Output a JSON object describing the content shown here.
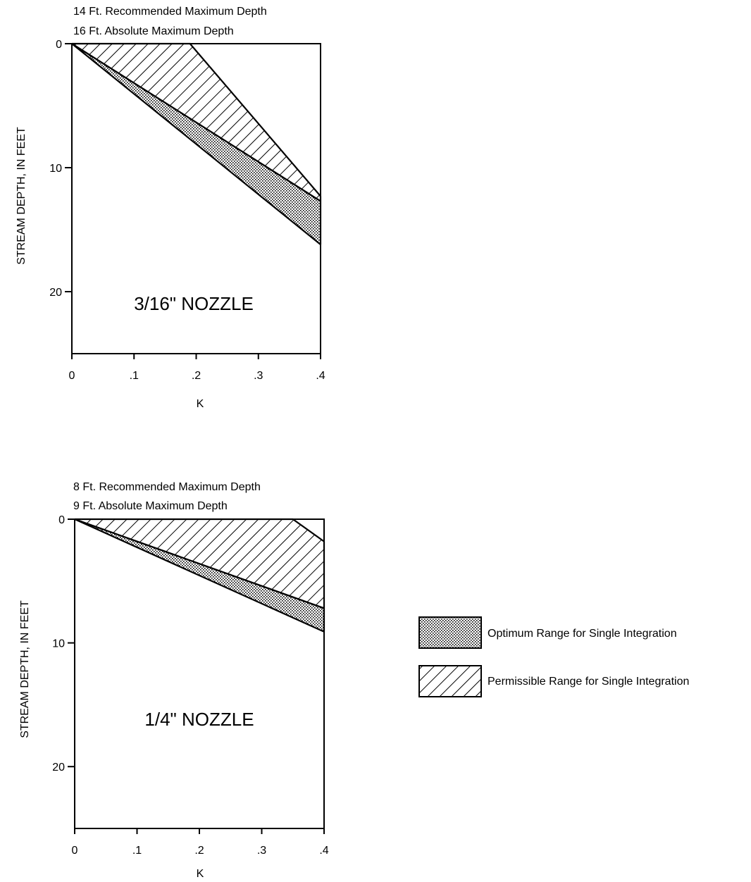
{
  "chart_data": [
    {
      "type": "area",
      "title": "3/16\" NOZZLE",
      "notes": [
        "14 Ft. Recommended Maximum Depth",
        "16 Ft. Absolute Maximum Depth"
      ],
      "xlabel": "K",
      "ylabel": "STREAM DEPTH, IN FEET",
      "xlim": [
        0,
        0.4
      ],
      "ylim": [
        0,
        25
      ],
      "y_inverted": true,
      "grid": false,
      "xticks": [
        0,
        0.1,
        0.2,
        0.3,
        0.4
      ],
      "xtick_labels": [
        "0",
        ".1",
        ".2",
        ".3",
        ".4"
      ],
      "yticks": [
        0,
        10,
        20
      ],
      "ytick_labels": [
        "0",
        "10",
        "20"
      ],
      "series": [
        {
          "name": "Optimum Range for Single Integration",
          "pattern": "dotted",
          "upper": {
            "x": [
              0,
              0.4
            ],
            "y": [
              0,
              12.7
            ]
          },
          "lower": {
            "x": [
              0,
              0.4
            ],
            "y": [
              0,
              16.2
            ]
          }
        },
        {
          "name": "Permissible Range for Single Integration",
          "pattern": "hatched",
          "upper": {
            "x": [
              0,
              0.19,
              0.4
            ],
            "y": [
              0,
              0,
              12.3
            ]
          },
          "lower": {
            "x": [
              0,
              0.4
            ],
            "y": [
              0,
              12.7
            ]
          }
        }
      ]
    },
    {
      "type": "area",
      "title": "1/4\" NOZZLE",
      "notes": [
        "8 Ft. Recommended Maximum Depth",
        "9 Ft. Absolute Maximum Depth"
      ],
      "xlabel": "K",
      "ylabel": "STREAM DEPTH, IN FEET",
      "xlim": [
        0,
        0.4
      ],
      "ylim": [
        0,
        25
      ],
      "y_inverted": true,
      "grid": false,
      "xticks": [
        0,
        0.1,
        0.2,
        0.3,
        0.4
      ],
      "xtick_labels": [
        "0",
        ".1",
        ".2",
        ".3",
        ".4"
      ],
      "yticks": [
        0,
        10,
        20
      ],
      "ytick_labels": [
        "0",
        "10",
        "20"
      ],
      "series": [
        {
          "name": "Optimum Range for Single Integration",
          "pattern": "dotted",
          "upper": {
            "x": [
              0,
              0.4
            ],
            "y": [
              0,
              7.2
            ]
          },
          "lower": {
            "x": [
              0,
              0.4
            ],
            "y": [
              0,
              9.1
            ]
          }
        },
        {
          "name": "Permissible Range for Single Integration",
          "pattern": "hatched",
          "upper": {
            "x": [
              0,
              0.35,
              0.4
            ],
            "y": [
              0,
              0,
              1.8
            ]
          },
          "lower": {
            "x": [
              0,
              0.4
            ],
            "y": [
              0,
              7.2
            ]
          }
        }
      ]
    }
  ],
  "legend": {
    "placement": "right",
    "items": [
      {
        "label": "Optimum Range for Single Integration",
        "pattern": "dotted"
      },
      {
        "label": "Permissible Range for Single Integration",
        "pattern": "hatched"
      }
    ]
  }
}
